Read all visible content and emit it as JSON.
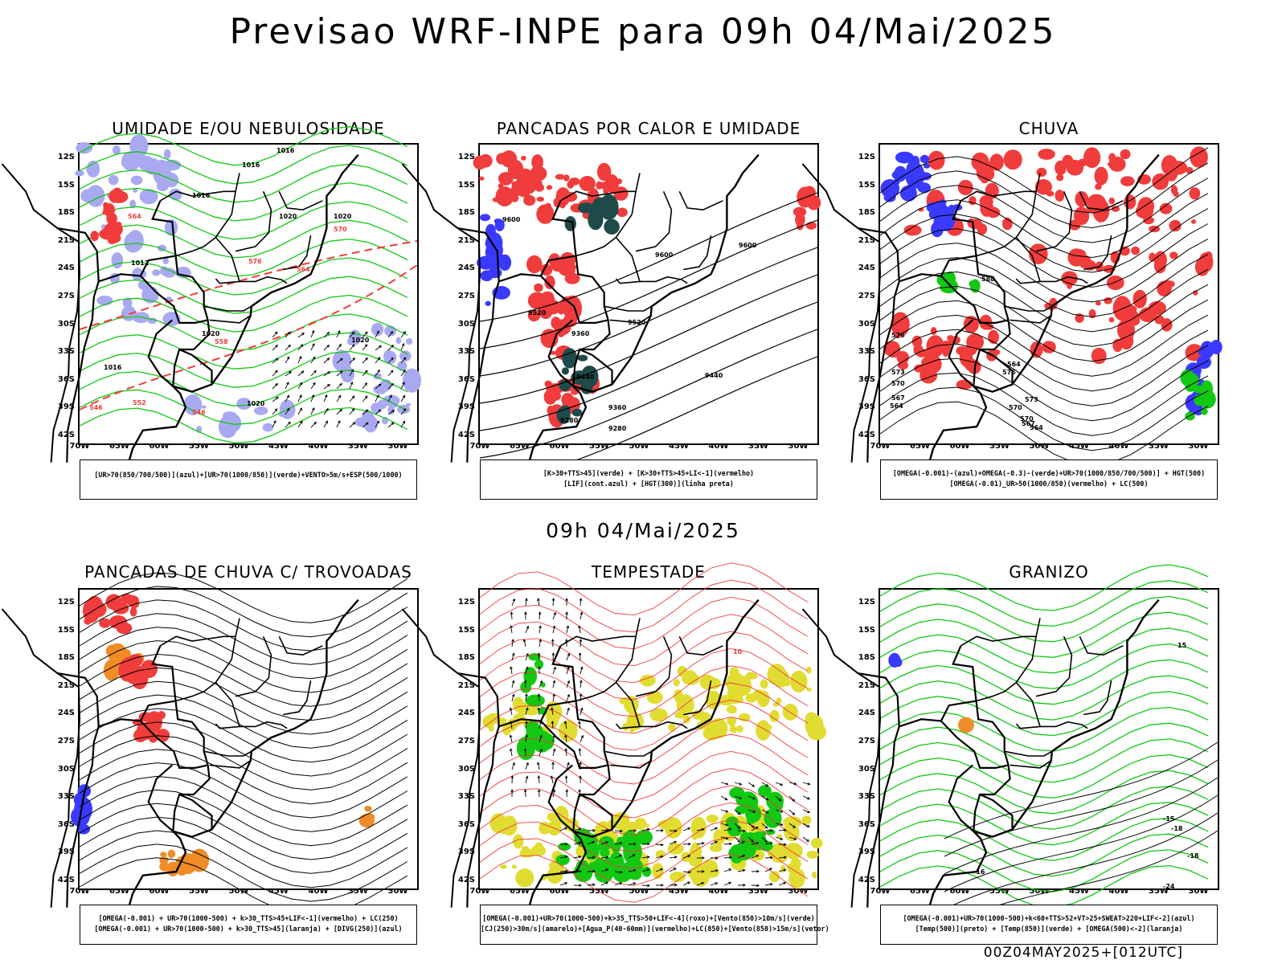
{
  "title": "Previsao WRF-INPE  para 09h 04/Mai/2025",
  "mid_title": "09h 04/Mai/2025",
  "footer": "00Z04MAY2025+[012UTC]",
  "lat_labels": [
    "12S",
    "15S",
    "18S",
    "21S",
    "24S",
    "27S",
    "30S",
    "33S",
    "36S",
    "39S",
    "42S"
  ],
  "lon_labels": [
    "70W",
    "65W",
    "60W",
    "55W",
    "50W",
    "45W",
    "40W",
    "35W",
    "30W"
  ],
  "colors": {
    "blue": "#3a3aff",
    "lavender": "#a9a9f2",
    "green": "#12c812",
    "red": "#f03c3c",
    "darkteal": "#1f4a4a",
    "orange": "#f08c28",
    "yellow": "#e1dc32",
    "black": "#000000"
  },
  "panels": [
    {
      "title": "UMIDADE E/OU NEBULOSIDADE",
      "caption": [
        "[UR>70(850/700/500)](azul)+[UR>70(1000/850)](verde)+VENTO>5m/s+ESP(500/1000)"
      ],
      "contour_labels": [
        "1016",
        "1016",
        "1016",
        "1020",
        "1020",
        "1012",
        "1020",
        "1020",
        "1020",
        "1016",
        "570",
        "564",
        "576",
        "564",
        "558",
        "546",
        "552",
        "546"
      ]
    },
    {
      "title": "PANCADAS POR CALOR E UMIDADE",
      "caption": [
        "[K>30+TTS>45](verde) + [K>30+TTS>45+LI<-1](vermelho)",
        "[LIF](cont.azul) + [HGT(300)](linha preta)"
      ],
      "contour_labels": [
        "9600",
        "9600",
        "9600",
        "9520",
        "9520",
        "9440",
        "9440",
        "9360",
        "9360",
        "9280",
        "9280"
      ]
    },
    {
      "title": "CHUVA",
      "caption": [
        "[OMEGA(-0.001)-(azul)+OMEGA(-0.3)-(verde)+UR>70(1000/850/700/500)] + HGT(500)",
        "[OMEGA(-0.01)_UR>50(1000/850)(vermelho) + LC(500)"
      ],
      "contour_labels": [
        "588",
        "576",
        "573",
        "570",
        "567",
        "564",
        "573",
        "570",
        "564",
        "576",
        "570",
        "567",
        "564"
      ]
    },
    {
      "title": "PANCADAS DE CHUVA C/ TROVOADAS",
      "caption": [
        "[OMEGA(-0.001) + UR>70(1000-500) + k>30_TTS>45+LIF<-1](vermelho) + LC(250)",
        "[OMEGA(-0.001) + UR>70(1000-500) + k>30_TTS>45](laranja) + [DIVG(250)](azul)"
      ],
      "contour_labels": []
    },
    {
      "title": "TEMPESTADE",
      "caption": [
        "[OMEGA(-0.001)+UR>70(1000-500)+k>35_TTS>50+LIF<-4](roxo)+[Vento(850)>10m/s](verde)",
        "[CJ(250)>30m/s](amarelo)+[Agua_P(40-60mm)](vermelho)+LC(850)+[Vento(850)>15m/s](vetor)"
      ],
      "contour_labels": [
        "10"
      ]
    },
    {
      "title": "GRANIZO",
      "caption": [
        "[OMEGA(-0.001)+UR>70(1000-500)+k<60+TTS>52+VT>25+SWEAT>220+LIF<-2](azul)",
        "[Temp(500)](preto) + [Temp(850)](verde) + [OMEGA(500)<-2](laranja)"
      ],
      "contour_labels": [
        "15",
        "-15",
        "-18",
        "-18",
        "-16",
        "-24"
      ]
    }
  ]
}
